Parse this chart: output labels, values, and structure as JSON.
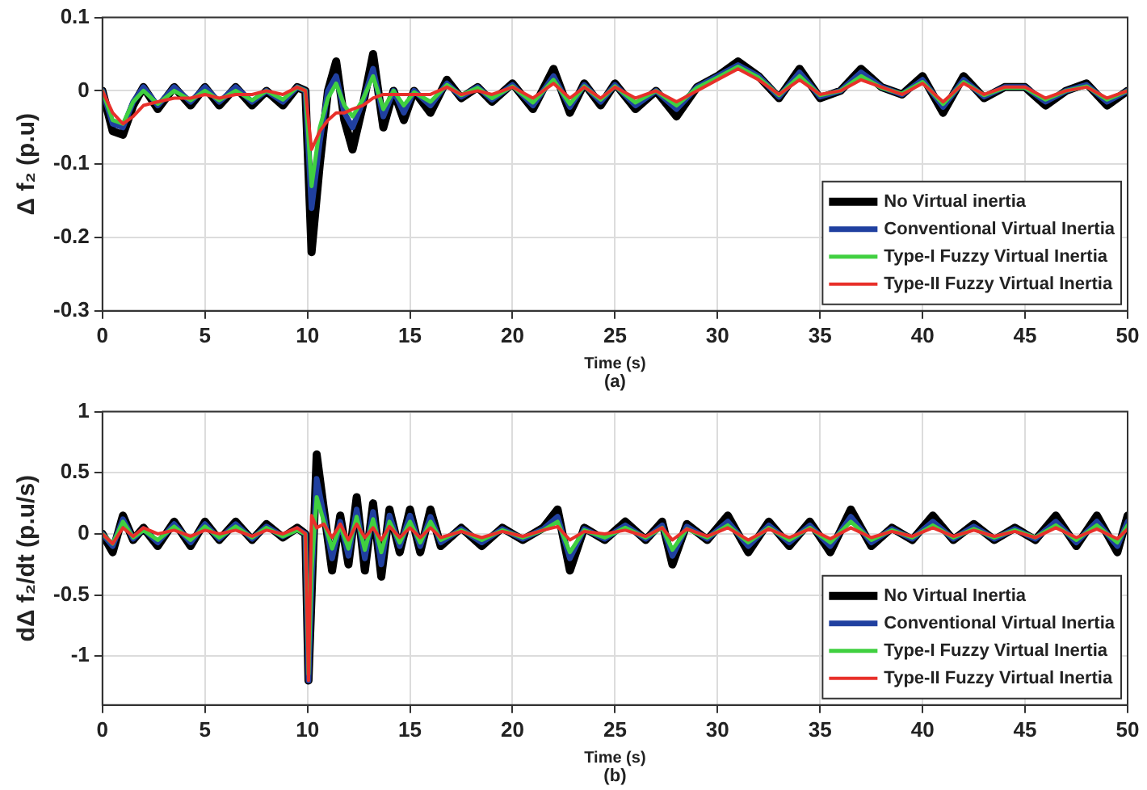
{
  "chart_data": [
    {
      "type": "line",
      "xlabel": "Time (s)",
      "ylabel": "Δ f₂ (p.u)",
      "annotations": [
        "(a)"
      ],
      "legend": "bottom right",
      "grid": true,
      "xlim": [
        0,
        50
      ],
      "xticks": [
        0,
        5,
        10,
        15,
        20,
        25,
        30,
        35,
        40,
        45,
        50
      ],
      "ylim": [
        -0.3,
        0.1
      ],
      "yticks": [
        -0.3,
        -0.2,
        -0.1,
        0,
        0.1
      ],
      "x": [
        0,
        0.5,
        1,
        1.5,
        2,
        2.7,
        3.5,
        4.3,
        5,
        5.7,
        6.5,
        7.3,
        8,
        8.8,
        9.5,
        9.9,
        10.2,
        10.6,
        11,
        11.4,
        11.8,
        12.2,
        12.7,
        13.2,
        13.7,
        14.2,
        14.7,
        15.2,
        16,
        16.8,
        17.5,
        18.3,
        19,
        20,
        21,
        22,
        22.8,
        23.5,
        24.3,
        25,
        26,
        27,
        28,
        29,
        30,
        31,
        32,
        33,
        34,
        35,
        36,
        37,
        38,
        39,
        40,
        41,
        42,
        43,
        44,
        45,
        46,
        47,
        48,
        49,
        50
      ],
      "series": [
        {
          "name": "No Virtual inertia",
          "color": "#000000",
          "values": [
            0,
            -0.055,
            -0.06,
            -0.02,
            0.005,
            -0.025,
            0.005,
            -0.02,
            0.005,
            -0.02,
            0.005,
            -0.02,
            0,
            -0.02,
            0.005,
            0,
            -0.22,
            -0.1,
            0,
            0.04,
            -0.04,
            -0.08,
            -0.02,
            0.05,
            -0.05,
            0,
            -0.04,
            0,
            -0.03,
            0.015,
            -0.01,
            0.005,
            -0.015,
            0.01,
            -0.025,
            0.03,
            -0.03,
            0.01,
            -0.02,
            0.01,
            -0.025,
            0,
            -0.035,
            0.005,
            0.02,
            0.04,
            0.02,
            -0.01,
            0.03,
            -0.01,
            0,
            0.03,
            0.005,
            -0.005,
            0.02,
            -0.03,
            0.02,
            -0.01,
            0.005,
            0.005,
            -0.02,
            0,
            0.01,
            -0.02,
            0
          ]
        },
        {
          "name": "Conventional Virtual Inertia",
          "color": "#2040a0",
          "values": [
            0,
            -0.045,
            -0.05,
            -0.015,
            0.005,
            -0.02,
            0.005,
            -0.015,
            0.005,
            -0.015,
            0.005,
            -0.015,
            0,
            -0.015,
            0.005,
            0,
            -0.16,
            -0.07,
            0,
            0.02,
            -0.03,
            -0.05,
            -0.015,
            0.03,
            -0.035,
            0,
            -0.03,
            0,
            -0.02,
            0.01,
            -0.008,
            0.005,
            -0.012,
            0.008,
            -0.02,
            0.02,
            -0.022,
            0.008,
            -0.015,
            0.008,
            -0.02,
            0,
            -0.025,
            0.005,
            0.02,
            0.035,
            0.02,
            -0.008,
            0.025,
            -0.008,
            0,
            0.025,
            0.005,
            -0.005,
            0.015,
            -0.022,
            0.015,
            -0.008,
            0.005,
            0.005,
            -0.015,
            0,
            0.008,
            -0.015,
            0
          ]
        },
        {
          "name": "Type-I Fuzzy Virtual Inertia",
          "color": "#40d040",
          "values": [
            0,
            -0.04,
            -0.045,
            -0.015,
            0,
            -0.018,
            0,
            -0.013,
            0,
            -0.013,
            0,
            -0.013,
            0,
            -0.012,
            0.005,
            0,
            -0.13,
            -0.05,
            -0.01,
            0.01,
            -0.02,
            -0.035,
            -0.012,
            0.02,
            -0.025,
            0,
            -0.02,
            -0.002,
            -0.015,
            0.008,
            -0.006,
            0.004,
            -0.01,
            0.006,
            -0.016,
            0.015,
            -0.018,
            0.006,
            -0.012,
            0.006,
            -0.016,
            0,
            -0.02,
            0.004,
            0.018,
            0.033,
            0.018,
            -0.006,
            0.02,
            -0.006,
            0,
            0.02,
            0.004,
            -0.004,
            0.012,
            -0.018,
            0.012,
            -0.006,
            0.004,
            0.004,
            -0.012,
            0,
            0.006,
            -0.012,
            0
          ]
        },
        {
          "name": "Type-II Fuzzy Virtual Inertia",
          "color": "#e8302a",
          "values": [
            0,
            -0.03,
            -0.045,
            -0.035,
            -0.02,
            -0.015,
            -0.01,
            -0.01,
            -0.005,
            -0.01,
            -0.005,
            -0.005,
            0,
            -0.005,
            0.005,
            0,
            -0.08,
            -0.055,
            -0.04,
            -0.03,
            -0.03,
            -0.025,
            -0.02,
            -0.01,
            -0.005,
            -0.005,
            -0.005,
            -0.005,
            -0.005,
            0.005,
            -0.005,
            0,
            -0.005,
            0.005,
            -0.01,
            0.01,
            -0.01,
            0.005,
            -0.01,
            0.005,
            -0.01,
            0,
            -0.015,
            0,
            0.015,
            0.03,
            0.015,
            -0.005,
            0.015,
            -0.005,
            0,
            0.015,
            0.005,
            -0.005,
            0.01,
            -0.015,
            0.01,
            -0.005,
            0.005,
            0.005,
            -0.01,
            0,
            0.005,
            -0.01,
            0
          ]
        }
      ]
    },
    {
      "type": "line",
      "xlabel": "Time (s)",
      "ylabel": "dΔ f₂/dt (p.u/s)",
      "annotations": [
        "(b)"
      ],
      "legend": "bottom right",
      "grid": true,
      "xlim": [
        0,
        50
      ],
      "xticks": [
        0,
        5,
        10,
        15,
        20,
        25,
        30,
        35,
        40,
        45,
        50
      ],
      "ylim": [
        -1.4,
        1
      ],
      "yticks": [
        -1,
        -0.5,
        0,
        0.5,
        1
      ],
      "x": [
        0,
        0.5,
        1,
        1.5,
        2,
        2.7,
        3.5,
        4.3,
        5,
        5.7,
        6.5,
        7.3,
        8,
        8.8,
        9.5,
        9.9,
        10.05,
        10.2,
        10.45,
        10.8,
        11.2,
        11.6,
        12,
        12.4,
        12.8,
        13.2,
        13.6,
        14,
        14.5,
        15,
        15.5,
        16,
        16.5,
        17.5,
        18.5,
        19.5,
        20.5,
        21.5,
        22.2,
        22.8,
        23.5,
        24.5,
        25.5,
        26.5,
        27.3,
        27.8,
        28.5,
        29.5,
        30.5,
        31.5,
        32.5,
        33.5,
        34.5,
        35.5,
        36.5,
        37.5,
        38.5,
        39.5,
        40.5,
        41.5,
        42.5,
        43.5,
        44.5,
        45.5,
        46.5,
        47.5,
        48.5,
        49.5,
        50
      ],
      "series": [
        {
          "name": "No Virtual Inertia",
          "color": "#000000",
          "values": [
            0,
            -0.15,
            0.15,
            -0.05,
            0.05,
            -0.1,
            0.1,
            -0.1,
            0.1,
            -0.05,
            0.1,
            -0.05,
            0.08,
            -0.03,
            0.05,
            0,
            -1.2,
            -0.5,
            0.65,
            0.2,
            -0.3,
            0.15,
            -0.25,
            0.3,
            -0.3,
            0.25,
            -0.35,
            0.2,
            -0.15,
            0.2,
            -0.15,
            0.2,
            -0.1,
            0.05,
            -0.1,
            0.05,
            -0.05,
            0.05,
            0.2,
            -0.3,
            0.05,
            -0.05,
            0.1,
            -0.05,
            0.1,
            -0.25,
            0.08,
            -0.05,
            0.15,
            -0.15,
            0.1,
            -0.1,
            0.1,
            -0.15,
            0.2,
            -0.1,
            0.05,
            -0.05,
            0.15,
            -0.05,
            0.08,
            -0.05,
            0.05,
            -0.05,
            0.15,
            -0.1,
            0.15,
            -0.15,
            0.15
          ]
        },
        {
          "name": "Conventional Virtual Inertia",
          "color": "#2040a0",
          "values": [
            0,
            -0.1,
            0.12,
            -0.04,
            0.04,
            -0.07,
            0.08,
            -0.07,
            0.08,
            -0.04,
            0.08,
            -0.04,
            0.06,
            -0.02,
            0.04,
            0,
            -1.2,
            -0.4,
            0.45,
            0.15,
            -0.2,
            0.1,
            -0.18,
            0.2,
            -0.2,
            0.18,
            -0.25,
            0.15,
            -0.1,
            0.15,
            -0.1,
            0.14,
            -0.07,
            0.04,
            -0.07,
            0.04,
            -0.04,
            0.04,
            0.14,
            -0.2,
            0.04,
            -0.04,
            0.07,
            -0.04,
            0.07,
            -0.18,
            0.06,
            -0.04,
            0.1,
            -0.1,
            0.07,
            -0.07,
            0.07,
            -0.1,
            0.14,
            -0.07,
            0.04,
            -0.04,
            0.1,
            -0.04,
            0.06,
            -0.04,
            0.04,
            -0.04,
            0.1,
            -0.07,
            0.1,
            -0.1,
            0.1
          ]
        },
        {
          "name": "Type-I Fuzzy Virtual Inertia",
          "color": "#40d040",
          "values": [
            0,
            -0.08,
            0.1,
            -0.03,
            0.03,
            -0.05,
            0.06,
            -0.05,
            0.06,
            -0.03,
            0.06,
            -0.03,
            0.05,
            -0.02,
            0.03,
            0,
            -1.15,
            -0.3,
            0.3,
            0.1,
            -0.12,
            0.07,
            -0.12,
            0.14,
            -0.13,
            0.12,
            -0.15,
            0.1,
            -0.07,
            0.1,
            -0.07,
            0.1,
            -0.05,
            0.03,
            -0.05,
            0.03,
            -0.03,
            0.03,
            0.1,
            -0.15,
            0.03,
            -0.03,
            0.05,
            -0.03,
            0.05,
            -0.13,
            0.04,
            -0.03,
            0.07,
            -0.07,
            0.05,
            -0.05,
            0.05,
            -0.07,
            0.1,
            -0.05,
            0.03,
            -0.03,
            0.07,
            -0.03,
            0.04,
            -0.03,
            0.03,
            -0.03,
            0.07,
            -0.05,
            0.07,
            -0.07,
            0.07
          ]
        },
        {
          "name": "Type-II Fuzzy Virtual Inertia",
          "color": "#e8302a",
          "values": [
            0,
            -0.08,
            0.05,
            -0.02,
            0.05,
            0,
            0.03,
            -0.02,
            0.03,
            0,
            0.03,
            -0.02,
            0.03,
            0,
            0.05,
            0,
            -1.2,
            0.15,
            0.05,
            0.08,
            -0.03,
            0.08,
            -0.05,
            0.08,
            -0.03,
            0.05,
            -0.05,
            0.06,
            -0.03,
            0.05,
            -0.03,
            0.05,
            -0.03,
            0.02,
            -0.03,
            0.02,
            -0.02,
            0.03,
            0.06,
            -0.05,
            0.02,
            0,
            0.03,
            -0.02,
            0.05,
            -0.05,
            0.04,
            -0.02,
            0.05,
            -0.05,
            0.04,
            -0.03,
            0.04,
            -0.04,
            0.05,
            -0.03,
            0.02,
            -0.02,
            0.05,
            -0.02,
            0.03,
            -0.02,
            0.02,
            -0.03,
            0.05,
            -0.03,
            0.04,
            -0.04,
            0.04
          ]
        }
      ]
    }
  ]
}
